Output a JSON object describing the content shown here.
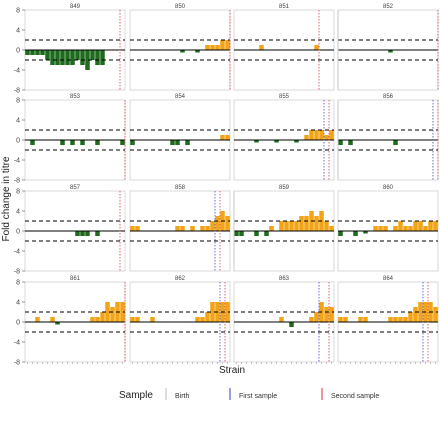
{
  "chart_data": {
    "type": "bar",
    "ylabel": "Fold change in titre",
    "xlabel": "Strain",
    "ylim": [
      -8,
      8
    ],
    "y_ticks": [
      8,
      4,
      0,
      -4,
      -8
    ],
    "reference_lines": {
      "solid": 0,
      "dashed": [
        2,
        -2
      ]
    },
    "n_strains": 20,
    "legend": {
      "title": "Sample",
      "position": "bottom",
      "entries": [
        {
          "label": "Birth",
          "color": "#c8c8c8"
        },
        {
          "label": "First sample",
          "color": "#5b5bd6"
        },
        {
          "label": "Second sample",
          "color": "#e0505a"
        }
      ]
    },
    "colors": {
      "positive": "#f2a416",
      "negative": "#1e6b1e"
    },
    "panels": [
      {
        "id": "849",
        "values": [
          -1,
          -1,
          -1,
          -1,
          -2,
          -3,
          -3,
          -3,
          -3,
          -3,
          -2,
          -3,
          -4,
          -2,
          -3,
          -3,
          0,
          0,
          0,
          0
        ],
        "markers": [
          {
            "type": "Second sample",
            "x": 18.5
          }
        ]
      },
      {
        "id": "850",
        "values": [
          0,
          0,
          0,
          0,
          0,
          0,
          0,
          0,
          0,
          0,
          -0.5,
          0,
          0,
          -0.5,
          0,
          1,
          1,
          1,
          2,
          2
        ],
        "markers": [
          {
            "type": "Second sample",
            "x": 19.5
          }
        ]
      },
      {
        "id": "851",
        "values": [
          0,
          0,
          0,
          0,
          0,
          1,
          0,
          0,
          0,
          0,
          0,
          0,
          0,
          0,
          0,
          0,
          1,
          0,
          0,
          0
        ],
        "markers": [
          {
            "type": "Second sample",
            "x": 16.5
          }
        ]
      },
      {
        "id": "852",
        "values": [
          0,
          0,
          0,
          0,
          0,
          0,
          0,
          0,
          0,
          0,
          -0.5,
          0,
          0,
          0,
          0,
          0,
          0,
          0,
          0,
          0
        ],
        "markers": [
          {
            "type": "Birth",
            "x": -0.5
          },
          {
            "type": "Second sample",
            "x": 19.5
          }
        ]
      },
      {
        "id": "853",
        "values": [
          0,
          -1,
          0,
          0,
          0,
          0,
          0,
          -1,
          0,
          -1,
          0,
          -1,
          0,
          0,
          -1,
          0,
          0,
          0,
          0,
          -1
        ],
        "markers": [
          {
            "type": "Second sample",
            "x": 19.5
          }
        ]
      },
      {
        "id": "854",
        "values": [
          -1,
          0,
          0,
          0,
          0,
          0,
          0,
          0,
          -1,
          -1,
          0,
          -1,
          0,
          0,
          0,
          0,
          0,
          0,
          1,
          1
        ],
        "markers": []
      },
      {
        "id": "855",
        "values": [
          0,
          0,
          0,
          0,
          -0.5,
          0,
          0,
          0,
          -0.5,
          0,
          0,
          0,
          -0.5,
          0,
          1,
          2,
          2,
          2,
          1,
          2
        ],
        "markers": [
          {
            "type": "First sample",
            "x": 17.5
          },
          {
            "type": "Second sample",
            "x": 18.5
          }
        ]
      },
      {
        "id": "856",
        "values": [
          -1,
          0,
          -1,
          0,
          0,
          0,
          0,
          0,
          0,
          0,
          0,
          -1,
          0,
          0,
          0,
          0,
          0,
          0,
          0,
          0
        ],
        "markers": [
          {
            "type": "Birth",
            "x": -0.5
          },
          {
            "type": "First sample",
            "x": 18.5
          },
          {
            "type": "Second sample",
            "x": 19.5
          }
        ]
      },
      {
        "id": "857",
        "values": [
          0,
          0,
          0,
          0,
          0,
          0,
          0,
          0,
          0,
          0,
          -1,
          -1,
          -1,
          0,
          -1,
          0,
          0,
          0,
          0,
          0
        ],
        "markers": [
          {
            "type": "Second sample",
            "x": 18.5
          }
        ]
      },
      {
        "id": "858",
        "values": [
          1,
          1,
          0,
          0,
          0,
          0,
          0,
          0,
          0,
          1,
          1,
          0,
          1,
          0,
          1,
          1,
          2,
          3,
          4,
          3
        ],
        "markers": [
          {
            "type": "First sample",
            "x": 16.5
          },
          {
            "type": "Second sample",
            "x": 17.5
          }
        ]
      },
      {
        "id": "859",
        "values": [
          -1,
          -1,
          0,
          0,
          -1,
          0,
          -1,
          1,
          0,
          2,
          2,
          2,
          2,
          3,
          3,
          4,
          3,
          4,
          2,
          1
        ],
        "markers": [
          {
            "type": "Birth",
            "x": -0.5
          }
        ]
      },
      {
        "id": "860",
        "values": [
          -1,
          0,
          0,
          -1,
          0,
          -0.5,
          0,
          1,
          1,
          1,
          0,
          1,
          2,
          1,
          1,
          2,
          2,
          1,
          2,
          2
        ],
        "markers": []
      },
      {
        "id": "861",
        "values": [
          0,
          0,
          1,
          0,
          0,
          1,
          -0.5,
          0,
          0,
          0,
          0,
          0,
          0,
          1,
          1,
          2,
          4,
          3,
          4,
          4
        ],
        "markers": [
          {
            "type": "Second sample",
            "x": 19.5
          }
        ]
      },
      {
        "id": "862",
        "values": [
          1,
          1,
          0,
          0,
          1,
          0,
          0,
          0,
          0,
          0,
          0,
          0,
          0,
          1,
          1,
          2,
          4,
          4,
          4,
          4
        ],
        "markers": [
          {
            "type": "First sample",
            "x": 17.5
          },
          {
            "type": "Second sample",
            "x": 18.5
          }
        ]
      },
      {
        "id": "863",
        "values": [
          0,
          0,
          0,
          0,
          0,
          0,
          0,
          0,
          0,
          1,
          0,
          -1,
          0,
          0,
          0,
          1,
          2,
          4,
          3,
          3
        ],
        "markers": [
          {
            "type": "First sample",
            "x": 16.5
          },
          {
            "type": "Second sample",
            "x": 18.5
          }
        ]
      },
      {
        "id": "864",
        "values": [
          1,
          1,
          0,
          0,
          1,
          1,
          0,
          0,
          0,
          0,
          1,
          1,
          1,
          1,
          2,
          3,
          4,
          4,
          4,
          3
        ],
        "markers": [
          {
            "type": "First sample",
            "x": 16.5
          },
          {
            "type": "Second sample",
            "x": 17.5
          }
        ]
      }
    ]
  }
}
